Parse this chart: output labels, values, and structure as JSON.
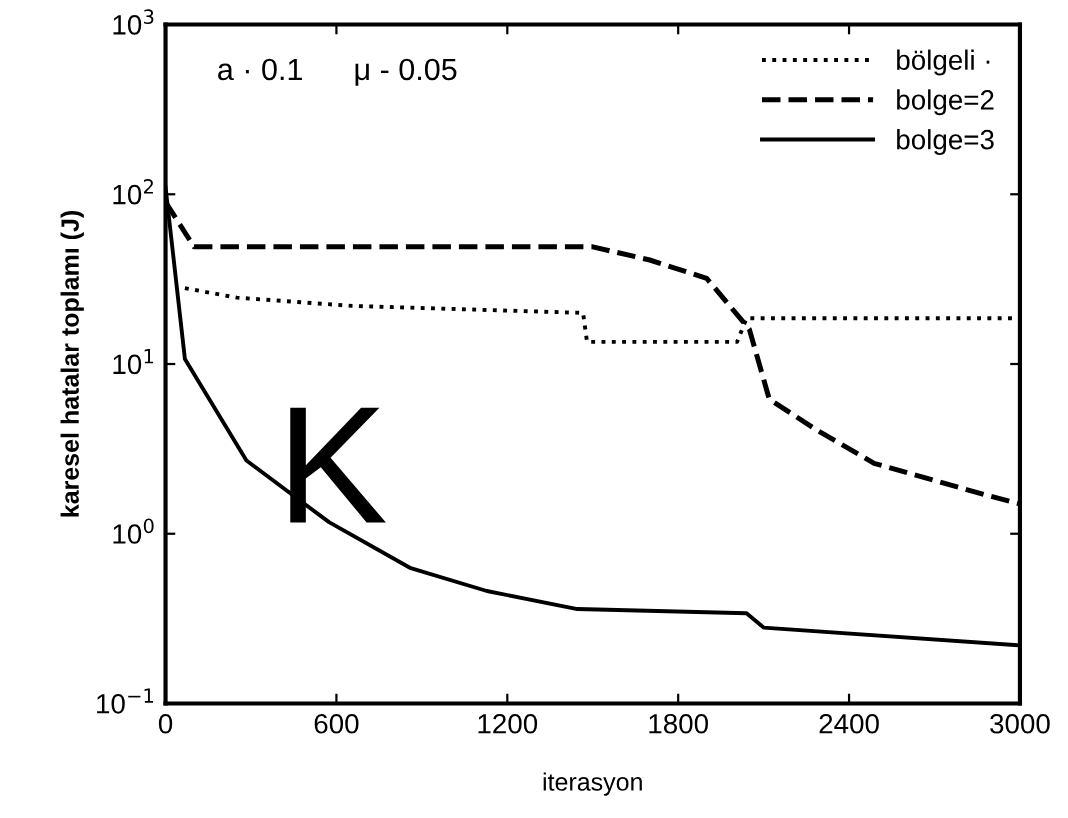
{
  "chart_data": {
    "type": "line",
    "xlabel": "iterasyon",
    "ylabel": "karesel hatalar toplamı (J)",
    "log": "y",
    "xlim": [
      0,
      3000
    ],
    "xticks": [
      0,
      600,
      1200,
      1800,
      2400,
      3000
    ],
    "ylim": [
      0.1,
      1000
    ],
    "yticks": [
      {
        "value": 0.1,
        "label": "10$^{−1}$"
      },
      {
        "value": 1,
        "label": "10$^{0}$"
      },
      {
        "value": 10,
        "label": "10$^{1}$"
      },
      {
        "value": 100,
        "label": "10$^{2}$"
      },
      {
        "value": 1000,
        "label": "10$^{3}$"
      }
    ],
    "grid": false,
    "legend": "top right",
    "annotations": [
      "a · 0.1",
      "μ - 0.05",
      "K"
    ],
    "series": [
      {
        "name": "bölgeli ·",
        "color": "#000000",
        "line_style": "dotted",
        "x": [
          68,
          250,
          655,
          1466,
          1480,
          2007,
          2040,
          3000
        ],
        "values": [
          28,
          24.6,
          22,
          20,
          13.5,
          13.5,
          18.6,
          18.6
        ]
      },
      {
        "name": "bolge=2",
        "color": "#000000",
        "line_style": "dashed",
        "x": [
          0,
          100,
          1500,
          1700,
          1900,
          2050,
          2120,
          2285,
          2488,
          2875,
          3000
        ],
        "values": [
          90,
          49,
          49,
          41,
          32,
          16,
          6.2,
          4.1,
          2.6,
          1.7,
          1.5
        ]
      },
      {
        "name": "bolge=3",
        "color": "#000000",
        "line_style": "solid",
        "x": [
          0,
          68,
          284,
          574,
          858,
          1128,
          1446,
          2040,
          2100,
          3000
        ],
        "values": [
          110,
          10.7,
          2.7,
          1.17,
          0.63,
          0.46,
          0.36,
          0.34,
          0.28,
          0.22
        ]
      }
    ]
  }
}
